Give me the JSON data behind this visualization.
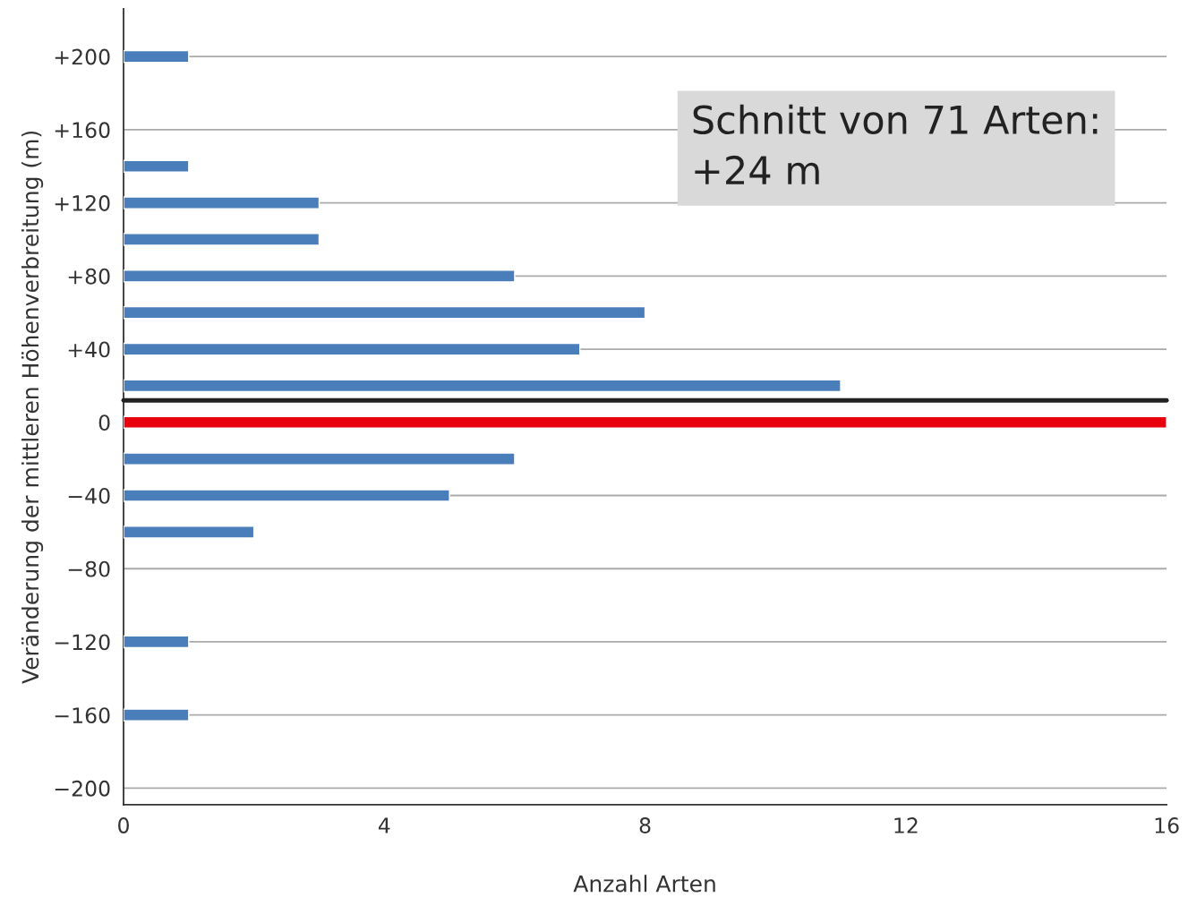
{
  "chart_data": {
    "type": "bar",
    "orientation": "horizontal",
    "xlabel": "Anzahl Arten",
    "ylabel": "Veränderung der mittleren Höhenverbreitung (m)",
    "x": [
      200,
      140,
      120,
      100,
      80,
      60,
      40,
      20,
      0,
      -20,
      -40,
      -60,
      -120,
      -160
    ],
    "values": [
      1,
      1,
      3,
      3,
      6,
      8,
      7,
      11,
      16,
      6,
      5,
      2,
      1,
      1
    ],
    "colors": [
      "#4a7ebb",
      "#4a7ebb",
      "#4a7ebb",
      "#4a7ebb",
      "#4a7ebb",
      "#4a7ebb",
      "#4a7ebb",
      "#4a7ebb",
      "#e8000f",
      "#4a7ebb",
      "#4a7ebb",
      "#4a7ebb",
      "#4a7ebb",
      "#4a7ebb"
    ],
    "xlim": [
      0,
      16
    ],
    "xticks": [
      0,
      4,
      8,
      12,
      16
    ],
    "ylim": [
      -209,
      226
    ],
    "yticks": [
      {
        "value": 200,
        "label": "+200"
      },
      {
        "value": 160,
        "label": "+160"
      },
      {
        "value": 120,
        "label": "+120"
      },
      {
        "value": 80,
        "label": "+80"
      },
      {
        "value": 40,
        "label": "+40"
      },
      0,
      {
        "value": -40,
        "label": "−40"
      },
      {
        "value": -80,
        "label": "−80"
      },
      {
        "value": -120,
        "label": "−120"
      },
      {
        "value": -160,
        "label": "−160"
      },
      {
        "value": -200,
        "label": "−200"
      }
    ],
    "grid": "y",
    "ref_lines": [
      {
        "axis": "y",
        "value": 12,
        "color": "#222222"
      }
    ],
    "annotations": [
      "Schnitt von 71 Arten:\n+24 m"
    ]
  }
}
